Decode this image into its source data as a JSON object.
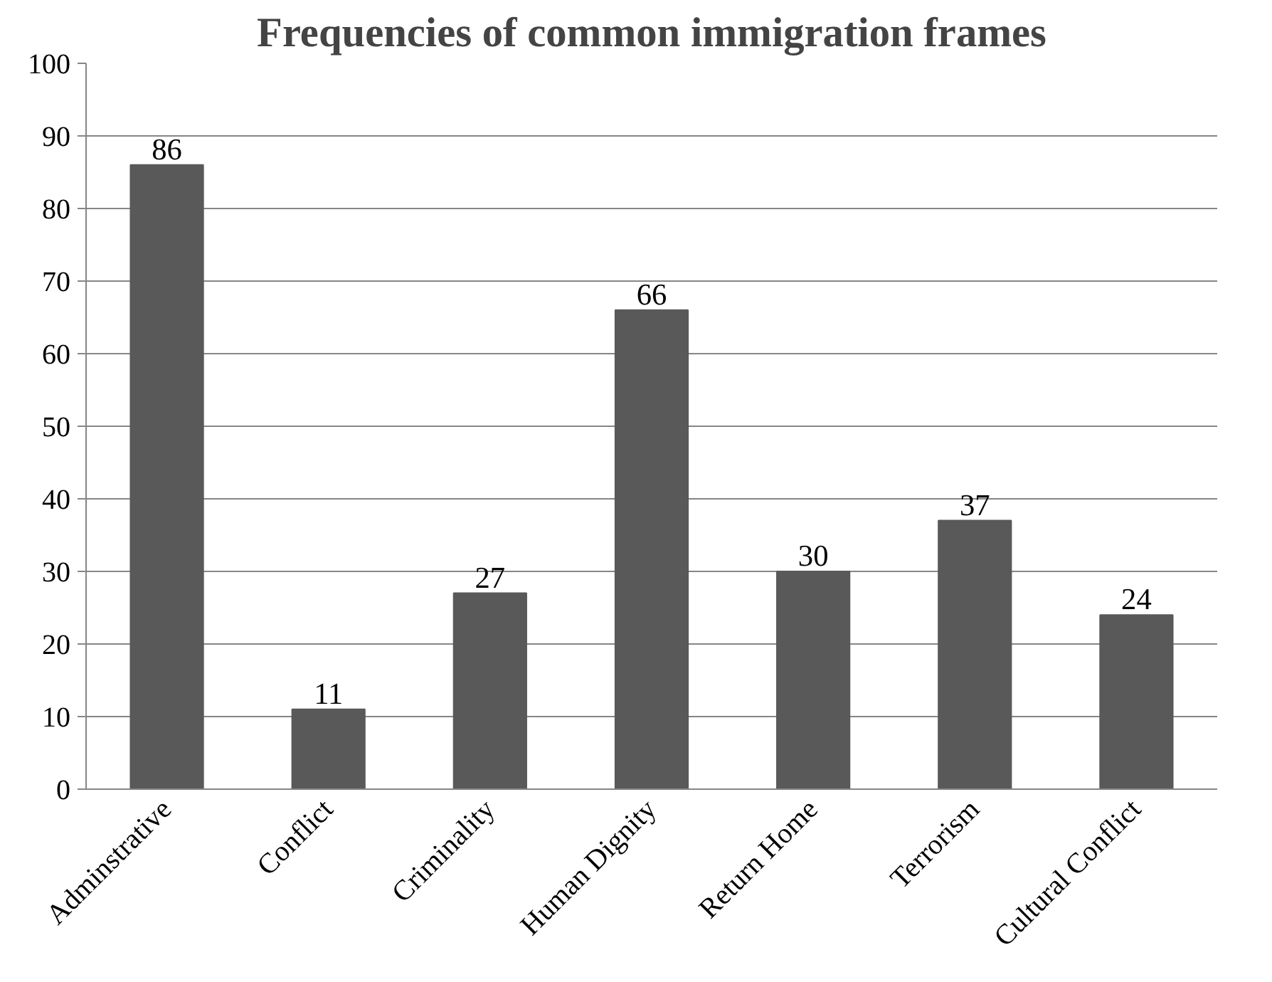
{
  "chart_data": {
    "type": "bar",
    "title": "Frequencies of common immigration frames",
    "categories": [
      "Adminstrative",
      "Conflict",
      "Criminality",
      "Human Dignity",
      "Return Home",
      "Terrorism",
      "Cultural Conflict"
    ],
    "values": [
      86,
      11,
      27,
      66,
      30,
      37,
      24
    ],
    "color": "#595959",
    "ylim": [
      0,
      100
    ],
    "yticks": [
      0,
      10,
      20,
      30,
      40,
      50,
      60,
      70,
      80,
      90,
      100
    ],
    "grid": "y",
    "data_labels": true
  }
}
